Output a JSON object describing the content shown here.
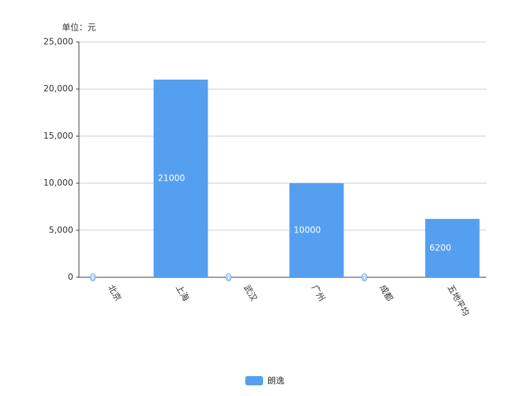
{
  "chart_data": {
    "type": "bar",
    "unit_label": "单位：元",
    "categories": [
      "北京",
      "上海",
      "武汉",
      "广州",
      "成都",
      "五地平均"
    ],
    "series": [
      {
        "name": "朗逸",
        "color": "#559ff0",
        "values": [
          0,
          21000,
          0,
          10000,
          0,
          6200
        ]
      }
    ],
    "ylim": [
      0,
      25000
    ],
    "yticks": [
      0,
      {
        "value": 5000,
        "label": "5,000"
      },
      {
        "value": 10000,
        "label": "10,000"
      },
      {
        "value": 15000,
        "label": "15,000"
      },
      {
        "value": 20000,
        "label": "20,000"
      },
      {
        "value": 25000,
        "label": "25,000"
      }
    ],
    "grid": true
  }
}
